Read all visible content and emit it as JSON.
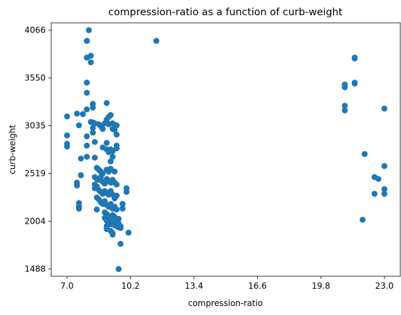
{
  "chart_data": {
    "type": "scatter",
    "title": "compression-ratio as a function of curb-weight",
    "xlabel": "compression-ratio",
    "ylabel": "curb-weight",
    "xlim": [
      6.2,
      23.8
    ],
    "ylim": [
      1410,
      4145
    ],
    "xticks": [
      7.0,
      10.2,
      13.4,
      16.6,
      19.8,
      23.0
    ],
    "xtick_labels": [
      "7.0",
      "10.2",
      "13.4",
      "16.6",
      "19.8",
      "23.0"
    ],
    "yticks": [
      1488,
      2004,
      2519,
      3035,
      3550,
      4066
    ],
    "ytick_labels": [
      "1488",
      "2004",
      "2519",
      "3035",
      "3550",
      "4066"
    ],
    "grid": false,
    "marker_color": "#1f77b4",
    "points": [
      [
        8.1,
        4066
      ],
      [
        8.0,
        3950
      ],
      [
        8.0,
        3770
      ],
      [
        8.2,
        3790
      ],
      [
        8.2,
        3720
      ],
      [
        8.0,
        3500
      ],
      [
        8.0,
        3390
      ],
      [
        8.3,
        3270
      ],
      [
        8.3,
        3230
      ],
      [
        8.0,
        3210
      ],
      [
        9.0,
        3280
      ],
      [
        7.5,
        3165
      ],
      [
        7.0,
        3135
      ],
      [
        7.8,
        3160
      ],
      [
        7.6,
        3040
      ],
      [
        8.2,
        3075
      ],
      [
        8.3,
        3070
      ],
      [
        8.4,
        3060
      ],
      [
        8.6,
        3050
      ],
      [
        8.7,
        3030
      ],
      [
        8.8,
        3000
      ],
      [
        8.9,
        3060
      ],
      [
        9.0,
        3100
      ],
      [
        9.1,
        3130
      ],
      [
        9.1,
        3050
      ],
      [
        9.2,
        3150
      ],
      [
        9.3,
        3060
      ],
      [
        9.3,
        3000
      ],
      [
        9.4,
        2990
      ],
      [
        9.5,
        3040
      ],
      [
        9.5,
        2940
      ],
      [
        8.3,
        3010
      ],
      [
        8.0,
        2920
      ],
      [
        8.3,
        2960
      ],
      [
        7.0,
        2930
      ],
      [
        7.0,
        2840
      ],
      [
        7.0,
        2810
      ],
      [
        8.0,
        2820
      ],
      [
        8.4,
        2860
      ],
      [
        8.8,
        2800
      ],
      [
        9.0,
        2850
      ],
      [
        9.0,
        2780
      ],
      [
        9.1,
        2750
      ],
      [
        9.2,
        2780
      ],
      [
        9.3,
        2760
      ],
      [
        9.5,
        2790
      ],
      [
        9.5,
        2820
      ],
      [
        9.3,
        2700
      ],
      [
        9.2,
        2650
      ],
      [
        7.7,
        2680
      ],
      [
        8.0,
        2700
      ],
      [
        8.4,
        2690
      ],
      [
        8.5,
        2580
      ],
      [
        8.6,
        2560
      ],
      [
        8.7,
        2540
      ],
      [
        8.8,
        2520
      ],
      [
        9.0,
        2560
      ],
      [
        9.1,
        2540
      ],
      [
        9.2,
        2570
      ],
      [
        9.4,
        2540
      ],
      [
        7.7,
        2500
      ],
      [
        8.4,
        2480
      ],
      [
        8.5,
        2460
      ],
      [
        8.6,
        2450
      ],
      [
        8.7,
        2480
      ],
      [
        8.8,
        2430
      ],
      [
        8.9,
        2410
      ],
      [
        9.0,
        2460
      ],
      [
        9.1,
        2440
      ],
      [
        9.2,
        2420
      ],
      [
        9.3,
        2450
      ],
      [
        9.4,
        2420
      ],
      [
        9.5,
        2400
      ],
      [
        7.5,
        2420
      ],
      [
        7.5,
        2390
      ],
      [
        8.4,
        2400
      ],
      [
        8.4,
        2360
      ],
      [
        8.5,
        2380
      ],
      [
        8.6,
        2340
      ],
      [
        8.7,
        2320
      ],
      [
        8.8,
        2300
      ],
      [
        8.9,
        2330
      ],
      [
        9.0,
        2310
      ],
      [
        9.1,
        2290
      ],
      [
        9.2,
        2330
      ],
      [
        9.3,
        2290
      ],
      [
        9.4,
        2250
      ],
      [
        9.5,
        2280
      ],
      [
        10.0,
        2360
      ],
      [
        10.0,
        2320
      ],
      [
        8.5,
        2260
      ],
      [
        8.6,
        2240
      ],
      [
        8.7,
        2210
      ],
      [
        8.8,
        2190
      ],
      [
        8.9,
        2220
      ],
      [
        9.0,
        2180
      ],
      [
        9.1,
        2160
      ],
      [
        9.2,
        2190
      ],
      [
        9.3,
        2140
      ],
      [
        9.4,
        2160
      ],
      [
        9.5,
        2130
      ],
      [
        9.8,
        2190
      ],
      [
        9.8,
        2140
      ],
      [
        7.6,
        2200
      ],
      [
        7.6,
        2160
      ],
      [
        7.6,
        2140
      ],
      [
        8.5,
        2130
      ],
      [
        8.9,
        2100
      ],
      [
        9.0,
        2080
      ],
      [
        9.1,
        2060
      ],
      [
        9.2,
        2040
      ],
      [
        9.3,
        2070
      ],
      [
        9.4,
        2050
      ],
      [
        9.5,
        2020
      ],
      [
        9.6,
        2030
      ],
      [
        8.9,
        2040
      ],
      [
        9.0,
        2010
      ],
      [
        9.1,
        1990
      ],
      [
        9.2,
        1970
      ],
      [
        9.3,
        1990
      ],
      [
        9.4,
        1960
      ],
      [
        9.5,
        1950
      ],
      [
        9.6,
        1980
      ],
      [
        9.7,
        1950
      ],
      [
        9.7,
        1930
      ],
      [
        9.0,
        1950
      ],
      [
        9.0,
        1920
      ],
      [
        9.2,
        1900
      ],
      [
        9.3,
        1875
      ],
      [
        9.6,
        1940
      ],
      [
        10.1,
        1880
      ],
      [
        9.3,
        1860
      ],
      [
        9.7,
        1760
      ],
      [
        9.6,
        1488
      ],
      [
        11.5,
        3950
      ],
      [
        21.0,
        3480
      ],
      [
        21.0,
        3450
      ],
      [
        21.5,
        3770
      ],
      [
        21.5,
        3760
      ],
      [
        21.5,
        3500
      ],
      [
        21.5,
        3490
      ],
      [
        21.0,
        3250
      ],
      [
        21.0,
        3200
      ],
      [
        23.0,
        3220
      ],
      [
        22.0,
        2730
      ],
      [
        23.0,
        2600
      ],
      [
        22.5,
        2480
      ],
      [
        22.7,
        2460
      ],
      [
        22.5,
        2300
      ],
      [
        23.0,
        2300
      ],
      [
        23.0,
        2350
      ],
      [
        21.9,
        2020
      ]
    ]
  }
}
